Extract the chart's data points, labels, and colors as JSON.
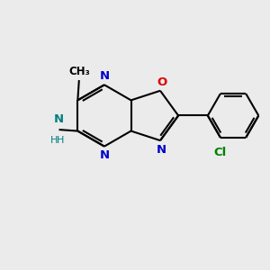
{
  "background_color": "#ebebeb",
  "bond_color": "#000000",
  "n_color": "#0000cc",
  "o_color": "#dd0000",
  "cl_color": "#008000",
  "nh2_n_color": "#008080",
  "nh2_h_color": "#008080",
  "figsize": [
    3.0,
    3.0
  ],
  "dpi": 100,
  "xlim": [
    0,
    10
  ],
  "ylim": [
    0,
    10
  ]
}
